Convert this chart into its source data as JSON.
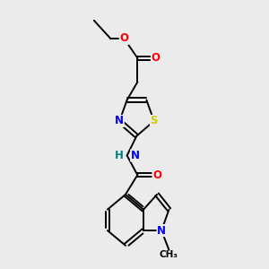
{
  "bg_color": "#ebebeb",
  "bond_color": "#000000",
  "atom_colors": {
    "O": "#ff0000",
    "N": "#0000ff",
    "S": "#cccc00",
    "NH_teal": "#008080",
    "C": "#000000"
  },
  "font_size": 8.5,
  "line_width": 1.4
}
